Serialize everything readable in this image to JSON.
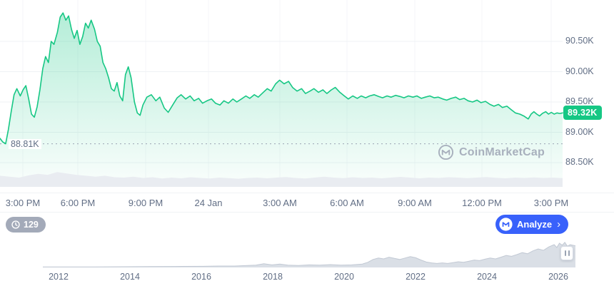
{
  "colors": {
    "green": "#16c784",
    "blue": "#3861fb",
    "text": "#616e85",
    "grid": "#eff2f5",
    "watermark_gray": "#a8b0bd",
    "volume_gray": "#e9ecf1",
    "nav_fill": "#dadfe6",
    "nav_stroke": "#c2c9d4"
  },
  "watermark": {
    "text": "CoinMarketCap"
  },
  "history_badge": {
    "count": "129"
  },
  "analyze_button": {
    "label": "Analyze",
    "chevron": "›"
  },
  "chart_data": [
    {
      "type": "area",
      "name": "price-24h",
      "title": "",
      "x_ticks": [
        "3:00 PM",
        "6:00 PM",
        "9:00 PM",
        "24 Jan",
        "3:00 AM",
        "6:00 AM",
        "9:00 AM",
        "12:00 PM",
        "3:00 PM"
      ],
      "y_ticks": [
        "90.50K",
        "90.00K",
        "89.50K",
        "89.00K",
        "88.50K"
      ],
      "y_tick_values": [
        90.5,
        90.0,
        89.5,
        89.0,
        88.5
      ],
      "ylim": [
        88.3,
        91.05
      ],
      "grid": true,
      "low_marker": {
        "label": "88.81K",
        "value": 88.81
      },
      "last": {
        "label": "89.32K",
        "value": 89.32
      },
      "series": [
        {
          "name": "price",
          "points": [
            [
              0,
              88.9
            ],
            [
              0.005,
              88.84
            ],
            [
              0.01,
              88.81
            ],
            [
              0.015,
              89.05
            ],
            [
              0.02,
              89.35
            ],
            [
              0.025,
              89.62
            ],
            [
              0.03,
              89.72
            ],
            [
              0.036,
              89.6
            ],
            [
              0.041,
              89.7
            ],
            [
              0.046,
              89.77
            ],
            [
              0.051,
              89.55
            ],
            [
              0.056,
              89.3
            ],
            [
              0.061,
              89.25
            ],
            [
              0.066,
              89.42
            ],
            [
              0.071,
              89.7
            ],
            [
              0.076,
              90.05
            ],
            [
              0.081,
              90.25
            ],
            [
              0.086,
              90.15
            ],
            [
              0.091,
              90.5
            ],
            [
              0.096,
              90.45
            ],
            [
              0.102,
              90.65
            ],
            [
              0.107,
              90.9
            ],
            [
              0.112,
              90.97
            ],
            [
              0.117,
              90.85
            ],
            [
              0.122,
              90.92
            ],
            [
              0.127,
              90.7
            ],
            [
              0.132,
              90.55
            ],
            [
              0.137,
              90.68
            ],
            [
              0.142,
              90.45
            ],
            [
              0.147,
              90.58
            ],
            [
              0.152,
              90.8
            ],
            [
              0.157,
              90.72
            ],
            [
              0.162,
              90.85
            ],
            [
              0.168,
              90.7
            ],
            [
              0.173,
              90.5
            ],
            [
              0.178,
              90.42
            ],
            [
              0.183,
              90.15
            ],
            [
              0.188,
              90.05
            ],
            [
              0.193,
              89.9
            ],
            [
              0.198,
              89.72
            ],
            [
              0.203,
              89.68
            ],
            [
              0.208,
              89.82
            ],
            [
              0.213,
              89.6
            ],
            [
              0.218,
              89.52
            ],
            [
              0.223,
              89.95
            ],
            [
              0.228,
              90.08
            ],
            [
              0.233,
              89.9
            ],
            [
              0.239,
              89.5
            ],
            [
              0.244,
              89.32
            ],
            [
              0.249,
              89.28
            ],
            [
              0.254,
              89.45
            ],
            [
              0.261,
              89.58
            ],
            [
              0.269,
              89.62
            ],
            [
              0.277,
              89.52
            ],
            [
              0.284,
              89.58
            ],
            [
              0.292,
              89.4
            ],
            [
              0.299,
              89.33
            ],
            [
              0.307,
              89.45
            ],
            [
              0.315,
              89.57
            ],
            [
              0.322,
              89.62
            ],
            [
              0.33,
              89.55
            ],
            [
              0.338,
              89.6
            ],
            [
              0.345,
              89.52
            ],
            [
              0.353,
              89.56
            ],
            [
              0.36,
              89.48
            ],
            [
              0.368,
              89.52
            ],
            [
              0.376,
              89.55
            ],
            [
              0.383,
              89.48
            ],
            [
              0.391,
              89.45
            ],
            [
              0.398,
              89.52
            ],
            [
              0.406,
              89.48
            ],
            [
              0.414,
              89.55
            ],
            [
              0.421,
              89.5
            ],
            [
              0.429,
              89.55
            ],
            [
              0.437,
              89.6
            ],
            [
              0.444,
              89.56
            ],
            [
              0.452,
              89.62
            ],
            [
              0.459,
              89.58
            ],
            [
              0.467,
              89.65
            ],
            [
              0.475,
              89.72
            ],
            [
              0.482,
              89.68
            ],
            [
              0.49,
              89.8
            ],
            [
              0.497,
              89.86
            ],
            [
              0.505,
              89.8
            ],
            [
              0.513,
              89.84
            ],
            [
              0.52,
              89.74
            ],
            [
              0.528,
              89.68
            ],
            [
              0.536,
              89.72
            ],
            [
              0.543,
              89.64
            ],
            [
              0.551,
              89.68
            ],
            [
              0.558,
              89.72
            ],
            [
              0.566,
              89.66
            ],
            [
              0.574,
              89.7
            ],
            [
              0.581,
              89.64
            ],
            [
              0.589,
              89.7
            ],
            [
              0.596,
              89.74
            ],
            [
              0.604,
              89.66
            ],
            [
              0.612,
              89.6
            ],
            [
              0.619,
              89.55
            ],
            [
              0.627,
              89.6
            ],
            [
              0.635,
              89.56
            ],
            [
              0.642,
              89.6
            ],
            [
              0.65,
              89.57
            ],
            [
              0.657,
              89.6
            ],
            [
              0.665,
              89.62
            ],
            [
              0.673,
              89.59
            ],
            [
              0.68,
              89.57
            ],
            [
              0.688,
              89.6
            ],
            [
              0.695,
              89.58
            ],
            [
              0.703,
              89.61
            ],
            [
              0.711,
              89.59
            ],
            [
              0.718,
              89.57
            ],
            [
              0.726,
              89.6
            ],
            [
              0.734,
              89.58
            ],
            [
              0.741,
              89.6
            ],
            [
              0.749,
              89.56
            ],
            [
              0.756,
              89.58
            ],
            [
              0.764,
              89.6
            ],
            [
              0.772,
              89.57
            ],
            [
              0.779,
              89.58
            ],
            [
              0.787,
              89.55
            ],
            [
              0.794,
              89.53
            ],
            [
              0.802,
              89.56
            ],
            [
              0.81,
              89.58
            ],
            [
              0.817,
              89.54
            ],
            [
              0.825,
              89.56
            ],
            [
              0.832,
              89.52
            ],
            [
              0.84,
              89.5
            ],
            [
              0.848,
              89.53
            ],
            [
              0.855,
              89.49
            ],
            [
              0.863,
              89.51
            ],
            [
              0.871,
              89.46
            ],
            [
              0.878,
              89.43
            ],
            [
              0.886,
              89.46
            ],
            [
              0.893,
              89.41
            ],
            [
              0.901,
              89.43
            ],
            [
              0.909,
              89.37
            ],
            [
              0.916,
              89.32
            ],
            [
              0.924,
              89.3
            ],
            [
              0.931,
              89.27
            ],
            [
              0.939,
              89.22
            ],
            [
              0.944,
              89.3
            ],
            [
              0.949,
              89.34
            ],
            [
              0.954,
              89.3
            ],
            [
              0.959,
              89.27
            ],
            [
              0.964,
              89.31
            ],
            [
              0.97,
              89.34
            ],
            [
              0.975,
              89.3
            ],
            [
              0.98,
              89.33
            ],
            [
              0.985,
              89.3
            ],
            [
              0.99,
              89.32
            ],
            [
              0.995,
              89.31
            ],
            [
              1,
              89.32
            ]
          ]
        }
      ],
      "volume": [
        0.6,
        0.55,
        0.5,
        0.62,
        0.7,
        0.65,
        0.8,
        0.72,
        0.65,
        0.6,
        0.55,
        0.6,
        0.52,
        0.5,
        0.55,
        0.48,
        0.52,
        0.45,
        0.5,
        0.46,
        0.52,
        0.48,
        0.45,
        0.5,
        0.47,
        0.44,
        0.48,
        0.5,
        0.46,
        0.5,
        0.53,
        0.48,
        0.45,
        0.5,
        0.55,
        0.5,
        0.47,
        0.52,
        0.48,
        0.5,
        0.46,
        0.5,
        0.54,
        0.5,
        0.46,
        0.5,
        0.48,
        0.52,
        0.5,
        0.47,
        0.5,
        0.53,
        0.49,
        0.46,
        0.5,
        0.48,
        0.51,
        0.48,
        0.5,
        0.47
      ]
    },
    {
      "type": "area",
      "name": "history-navigator",
      "x_ticks": [
        "2012",
        "2014",
        "2016",
        "2018",
        "2020",
        "2022",
        "2024",
        "2026"
      ],
      "points": [
        [
          0,
          0.02
        ],
        [
          0.05,
          0.02
        ],
        [
          0.1,
          0.02
        ],
        [
          0.15,
          0.025
        ],
        [
          0.2,
          0.03
        ],
        [
          0.25,
          0.035
        ],
        [
          0.3,
          0.04
        ],
        [
          0.33,
          0.05
        ],
        [
          0.36,
          0.05
        ],
        [
          0.4,
          0.08
        ],
        [
          0.415,
          0.13
        ],
        [
          0.43,
          0.09
        ],
        [
          0.445,
          0.12
        ],
        [
          0.46,
          0.08
        ],
        [
          0.48,
          0.07
        ],
        [
          0.5,
          0.09
        ],
        [
          0.52,
          0.08
        ],
        [
          0.54,
          0.1
        ],
        [
          0.56,
          0.08
        ],
        [
          0.58,
          0.09
        ],
        [
          0.6,
          0.12
        ],
        [
          0.61,
          0.18
        ],
        [
          0.62,
          0.28
        ],
        [
          0.63,
          0.33
        ],
        [
          0.64,
          0.3
        ],
        [
          0.65,
          0.36
        ],
        [
          0.66,
          0.32
        ],
        [
          0.67,
          0.28
        ],
        [
          0.68,
          0.33
        ],
        [
          0.69,
          0.38
        ],
        [
          0.7,
          0.34
        ],
        [
          0.71,
          0.26
        ],
        [
          0.72,
          0.19
        ],
        [
          0.73,
          0.16
        ],
        [
          0.74,
          0.14
        ],
        [
          0.75,
          0.16
        ],
        [
          0.76,
          0.14
        ],
        [
          0.77,
          0.17
        ],
        [
          0.78,
          0.2
        ],
        [
          0.79,
          0.18
        ],
        [
          0.8,
          0.22
        ],
        [
          0.81,
          0.26
        ],
        [
          0.82,
          0.24
        ],
        [
          0.83,
          0.29
        ],
        [
          0.84,
          0.33
        ],
        [
          0.85,
          0.3
        ],
        [
          0.86,
          0.36
        ],
        [
          0.87,
          0.42
        ],
        [
          0.88,
          0.39
        ],
        [
          0.89,
          0.45
        ],
        [
          0.9,
          0.52
        ],
        [
          0.91,
          0.48
        ],
        [
          0.92,
          0.58
        ],
        [
          0.93,
          0.65
        ],
        [
          0.94,
          0.6
        ],
        [
          0.95,
          0.72
        ],
        [
          0.96,
          0.8
        ],
        [
          0.965,
          0.7
        ],
        [
          0.97,
          0.85
        ],
        [
          0.975,
          0.78
        ],
        [
          0.98,
          0.88
        ],
        [
          0.985,
          0.74
        ],
        [
          0.99,
          0.8
        ],
        [
          1,
          0.76
        ]
      ]
    }
  ]
}
